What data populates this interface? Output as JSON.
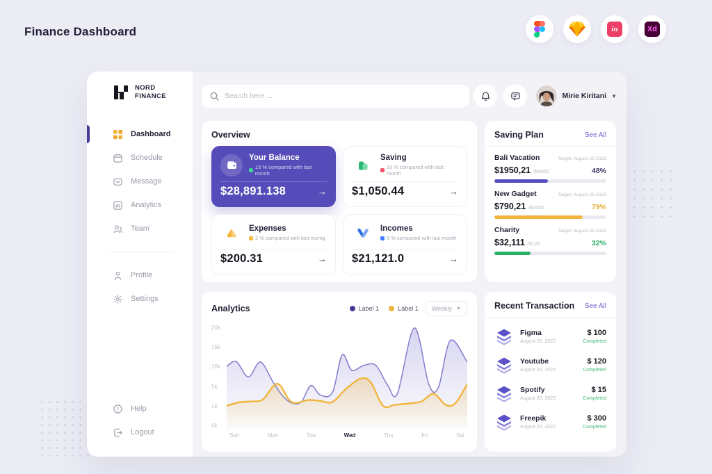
{
  "page": {
    "title": "Finance Dashboard"
  },
  "apps": [
    {
      "name": "figma"
    },
    {
      "name": "sketch"
    },
    {
      "name": "invision",
      "label": "in"
    },
    {
      "name": "xd",
      "label": "Xd"
    }
  ],
  "sidebar": {
    "brand_line1": "NORD",
    "brand_line2": "FINANCE",
    "menu": [
      {
        "label": "Dashboard"
      },
      {
        "label": "Schedule"
      },
      {
        "label": "Message"
      },
      {
        "label": "Analytics"
      },
      {
        "label": "Team"
      }
    ],
    "secondary": [
      {
        "label": "Profile"
      },
      {
        "label": "Settings"
      }
    ],
    "footer": [
      {
        "label": "Help"
      },
      {
        "label": "Logout"
      }
    ]
  },
  "header": {
    "search_placeholder": "Search here ...",
    "user_name": "Mirie Kiritani"
  },
  "overview": {
    "title": "Overview",
    "cta_arrow": "→",
    "cards": [
      {
        "title": "Your Balance",
        "change": "15 % compared with last month",
        "amount": "$28,891.138"
      },
      {
        "title": "Saving",
        "change": "10 % compared with last month",
        "amount": "$1,050.44"
      },
      {
        "title": "Expenses",
        "change": "2 % compared with last montg",
        "amount": "$200.31"
      },
      {
        "title": "Incomes",
        "change": "8 % compared with last month",
        "amount": "$21,121.0"
      }
    ]
  },
  "saving_plan": {
    "title": "Saving Plan",
    "see_all": "See All",
    "items": [
      {
        "name": "Bali Vacation",
        "target": "Target: August 25 2022",
        "amount": "$1950,21",
        "of_total": "/$4000",
        "percent": "48%",
        "percent_value": 48,
        "color": "#574FBF",
        "pct_color": "#433C6B"
      },
      {
        "name": "New Gadget",
        "target": "Target: August 25 2022",
        "amount": "$790,21",
        "of_total": "/$1000",
        "percent": "79%",
        "percent_value": 79,
        "color": "#F2B33C",
        "pct_color": "#E9A832"
      },
      {
        "name": "Charity",
        "target": "Target: August 25 2022",
        "amount": "$32,111",
        "of_total": "/$100",
        "percent": "32%",
        "percent_value": 32,
        "color": "#2BAE66",
        "pct_color": "#2BAE66"
      }
    ]
  },
  "analytics": {
    "title": "Analytics",
    "legend": [
      {
        "label": "Label 1",
        "color": "#463C96"
      },
      {
        "label": "Label 1",
        "color": "#F0B63E"
      }
    ],
    "range": "Weekly"
  },
  "chart_data": {
    "type": "area",
    "title": "Analytics",
    "xticks": [
      "Sun",
      "Mon",
      "Tue",
      "Wed",
      "Thu",
      "Fri",
      "Sat"
    ],
    "highlighted_xtick": "Wed",
    "yticks": [
      "20k",
      "15k",
      "10k",
      "5k",
      "1k",
      "0k"
    ],
    "ylim": [
      0,
      22000
    ],
    "grid": false,
    "legend_position": "top-right",
    "series": [
      {
        "name": "Label 1",
        "color": "#8781CE",
        "points": [
          [
            0,
            13000
          ],
          [
            4,
            14000
          ],
          [
            9,
            10800
          ],
          [
            14,
            13900
          ],
          [
            19,
            10000
          ],
          [
            23,
            7000
          ],
          [
            27,
            5400
          ],
          [
            31,
            5600
          ],
          [
            35,
            9000
          ],
          [
            39,
            7000
          ],
          [
            44,
            7600
          ],
          [
            48,
            15400
          ],
          [
            52,
            12200
          ],
          [
            57,
            13200
          ],
          [
            62,
            13200
          ],
          [
            67,
            9000
          ],
          [
            71,
            7400
          ],
          [
            78,
            21000
          ],
          [
            84,
            9300
          ],
          [
            88,
            8600
          ],
          [
            93,
            18400
          ],
          [
            100,
            13900
          ]
        ]
      },
      {
        "name": "Label 1",
        "color": "#F0B63E",
        "points": [
          [
            0,
            4800
          ],
          [
            5,
            5500
          ],
          [
            10,
            5700
          ],
          [
            15,
            6100
          ],
          [
            21,
            9400
          ],
          [
            26,
            6000
          ],
          [
            29,
            5400
          ],
          [
            34,
            6000
          ],
          [
            39,
            5800
          ],
          [
            44,
            5600
          ],
          [
            50,
            8500
          ],
          [
            56,
            10500
          ],
          [
            60,
            9600
          ],
          [
            65,
            4800
          ],
          [
            70,
            5000
          ],
          [
            76,
            5300
          ],
          [
            81,
            5700
          ],
          [
            86,
            7300
          ],
          [
            91,
            5000
          ],
          [
            95,
            5300
          ],
          [
            100,
            9300
          ]
        ]
      }
    ]
  },
  "transactions": {
    "title": "Recent Transaction",
    "see_all": "See All",
    "rows": [
      {
        "name": "Figma",
        "date": "August 20, 2022",
        "amount": "$ 100",
        "status": "Completed"
      },
      {
        "name": "Youtube",
        "date": "August 20, 2022",
        "amount": "$ 120",
        "status": "Completed"
      },
      {
        "name": "Spotify",
        "date": "August 20, 2022",
        "amount": "$ 15",
        "status": "Completed"
      },
      {
        "name": "Freepik",
        "date": "August 20, 2022",
        "amount": "$ 300",
        "status": "Completed"
      }
    ]
  },
  "colors": {
    "accent_purple": "#564CB9",
    "accent_yellow": "#F2B33C",
    "accent_green": "#2BAE66",
    "accent_blue": "#2F6FDE",
    "status_green": "#43BD81",
    "link_purple": "#6B63D1"
  }
}
